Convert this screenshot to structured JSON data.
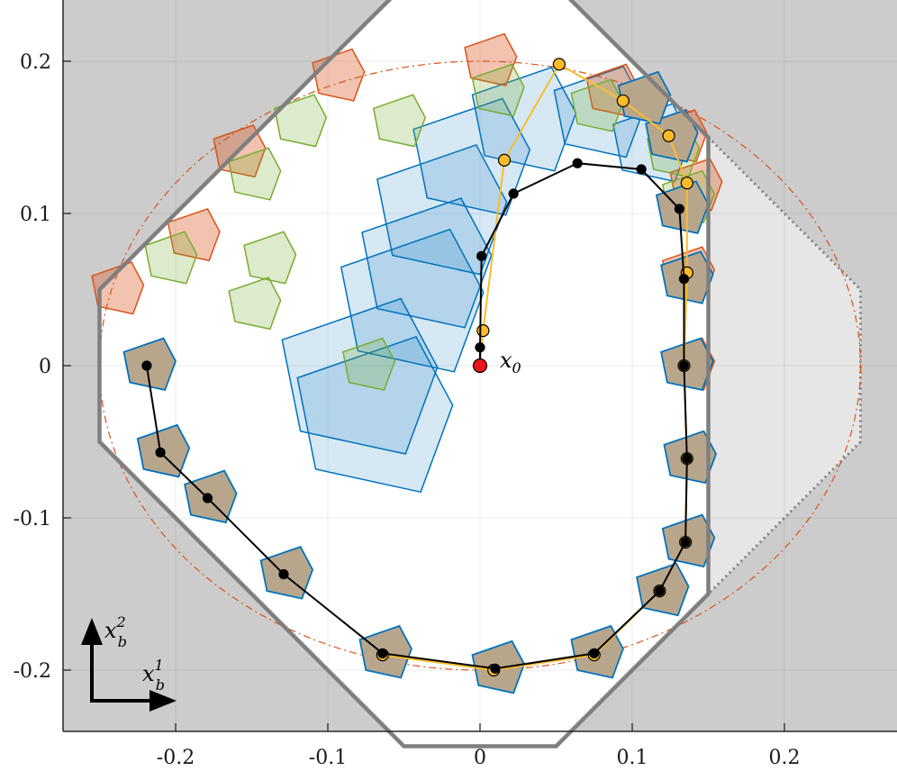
{
  "chart_data": {
    "type": "scatter",
    "title": "",
    "xlabel": "",
    "ylabel": "",
    "xlim": [
      -0.275,
      0.275
    ],
    "ylim": [
      -0.275,
      0.275
    ],
    "grid": true,
    "x_ticks": [
      -0.2,
      -0.1,
      0,
      0.1,
      0.2
    ],
    "y_ticks": [
      -0.2,
      -0.1,
      0,
      0.1,
      0.2
    ],
    "x_tick_labels": [
      "-0.2",
      "-0.1",
      "0",
      "0.1",
      "0.2"
    ],
    "y_tick_labels": [
      "-0.2",
      "-0.1",
      "0",
      "0.1",
      "0.2"
    ],
    "axis_annotation": {
      "base": "x",
      "sub": "b",
      "vertical_sup": "2",
      "horizontal_sup": "1"
    },
    "initial_state": {
      "label_base": "x",
      "label_sub": "0",
      "x": 0.0,
      "y": 0.0,
      "color": "#e8141e"
    },
    "safe_set": [
      [
        -0.05,
        0.25
      ],
      [
        0.05,
        0.25
      ],
      [
        0.15,
        0.15
      ],
      [
        0.15,
        -0.15
      ],
      [
        0.05,
        -0.25
      ],
      [
        -0.05,
        -0.25
      ],
      [
        -0.25,
        -0.05
      ],
      [
        -0.25,
        0.05
      ]
    ],
    "extended_set": [
      [
        0.15,
        0.15
      ],
      [
        0.25,
        0.05
      ],
      [
        0.25,
        -0.05
      ],
      [
        0.15,
        -0.15
      ]
    ],
    "ellipse": {
      "cx": 0.0,
      "cy": 0.0,
      "rx": 0.25,
      "ry": 0.2
    },
    "colors": {
      "outside": "#cccccc",
      "extended": "#e6e6e6",
      "safe_border": "#7f7f7f",
      "ellipse": "#d95319",
      "orange": "#d95319",
      "green": "#77ac30",
      "blue": "#0072bd",
      "brown": "#b8a68c",
      "yellow": "#fbbb2b",
      "black": "#000000"
    },
    "series": [
      {
        "color": "#000000",
        "points": [
          [
            0.0,
            0.0
          ],
          [
            0.0,
            0.012
          ],
          [
            0.001,
            0.072
          ],
          [
            0.022,
            0.113
          ],
          [
            0.064,
            0.133
          ],
          [
            0.106,
            0.129
          ],
          [
            0.131,
            0.103
          ],
          [
            0.134,
            0.057
          ],
          [
            0.134,
            0.0
          ],
          [
            0.136,
            -0.061
          ],
          [
            0.135,
            -0.116
          ],
          [
            0.118,
            -0.148
          ],
          [
            0.075,
            -0.189
          ],
          [
            0.01,
            -0.199
          ],
          [
            -0.064,
            -0.189
          ],
          [
            -0.129,
            -0.137
          ],
          [
            -0.179,
            -0.087
          ],
          [
            -0.21,
            -0.057
          ],
          [
            -0.219,
            0.0
          ]
        ]
      },
      {
        "color": "#fbbb2b",
        "points": [
          [
            0.0,
            0.0
          ],
          [
            0.002,
            0.023
          ],
          [
            0.016,
            0.135
          ],
          [
            0.052,
            0.198
          ],
          [
            0.094,
            0.174
          ],
          [
            0.124,
            0.151
          ],
          [
            0.136,
            0.12
          ],
          [
            0.136,
            0.061
          ],
          [
            0.134,
            0.0
          ],
          [
            0.136,
            -0.061
          ],
          [
            0.135,
            -0.116
          ],
          [
            0.118,
            -0.148
          ],
          [
            0.075,
            -0.19
          ],
          [
            0.009,
            -0.2
          ],
          [
            -0.064,
            -0.19
          ]
        ]
      }
    ],
    "tube_sets": [
      {
        "color": "#d95319",
        "alpha": 0.35,
        "scale": 0.02,
        "centers": [
          [
            -0.24,
            0.05
          ],
          [
            -0.19,
            0.085
          ],
          [
            -0.16,
            0.14
          ],
          [
            -0.095,
            0.19
          ],
          [
            0.005,
            0.2
          ],
          [
            0.085,
            0.18
          ],
          [
            0.13,
            0.15
          ],
          [
            0.14,
            0.118
          ],
          [
            0.135,
            0.06
          ],
          [
            0.135,
            0.0
          ]
        ]
      },
      {
        "color": "#77ac30",
        "alpha": 0.25,
        "scale": 0.02,
        "centers": [
          [
            -0.12,
            0.16
          ],
          [
            -0.15,
            0.125
          ],
          [
            -0.14,
            0.07
          ],
          [
            -0.205,
            0.07
          ],
          [
            -0.15,
            0.04
          ],
          [
            -0.075,
            0.0
          ],
          [
            -0.055,
            0.16
          ],
          [
            0.01,
            0.18
          ],
          [
            0.075,
            0.17
          ],
          [
            0.125,
            0.14
          ],
          [
            0.135,
            0.11
          ]
        ]
      }
    ],
    "large_sets": [
      {
        "color": "#0072bd",
        "alpha": 0.16,
        "scale": 0.06,
        "cx": -0.085,
        "cy": -0.01
      },
      {
        "color": "#0072bd",
        "alpha": 0.16,
        "scale": 0.06,
        "cx": -0.075,
        "cy": -0.035
      },
      {
        "color": "#0072bd",
        "alpha": 0.16,
        "scale": 0.055,
        "cx": -0.05,
        "cy": 0.04
      },
      {
        "color": "#0072bd",
        "alpha": 0.16,
        "scale": 0.05,
        "cx": -0.04,
        "cy": 0.065
      },
      {
        "color": "#0072bd",
        "alpha": 0.16,
        "scale": 0.05,
        "cx": -0.03,
        "cy": 0.1
      },
      {
        "color": "#0072bd",
        "alpha": 0.16,
        "scale": 0.045,
        "cx": -0.01,
        "cy": 0.135
      },
      {
        "color": "#0072bd",
        "alpha": 0.16,
        "scale": 0.04,
        "cx": 0.025,
        "cy": 0.16
      },
      {
        "color": "#0072bd",
        "alpha": 0.16,
        "scale": 0.035,
        "cx": 0.075,
        "cy": 0.165
      },
      {
        "color": "#0072bd",
        "alpha": 0.16,
        "scale": 0.03,
        "cx": 0.11,
        "cy": 0.145
      }
    ],
    "tube_brown": {
      "color": "#b8a68c",
      "border": "#0072bd",
      "scale": 0.02,
      "centers": [
        [
          -0.219,
          0.0
        ],
        [
          -0.21,
          -0.057
        ],
        [
          -0.179,
          -0.087
        ],
        [
          -0.129,
          -0.137
        ],
        [
          -0.064,
          -0.189
        ],
        [
          0.01,
          -0.199
        ],
        [
          0.075,
          -0.189
        ],
        [
          0.118,
          -0.148
        ],
        [
          0.135,
          -0.116
        ],
        [
          0.136,
          -0.061
        ],
        [
          0.134,
          0.0
        ],
        [
          0.134,
          0.057
        ],
        [
          0.131,
          0.103
        ],
        [
          0.124,
          0.15
        ],
        [
          0.106,
          0.175
        ]
      ]
    }
  }
}
